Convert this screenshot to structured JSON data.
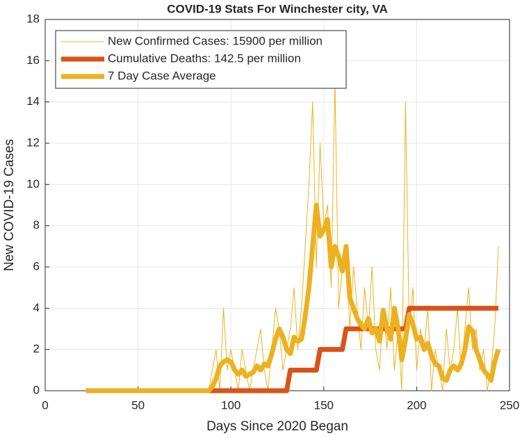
{
  "chart_data": {
    "type": "line",
    "title": "COVID-19 Stats For Winchester city, VA",
    "xlabel": "Days Since 2020 Began",
    "ylabel": "New COVID-19 Cases",
    "xlim": [
      0,
      250
    ],
    "xticks": [
      0,
      50,
      100,
      150,
      200,
      250
    ],
    "ylim": [
      0,
      18
    ],
    "yticks": [
      0,
      2,
      4,
      6,
      8,
      10,
      12,
      14,
      16,
      18
    ],
    "grid": true,
    "legend": "upper left",
    "x": [
      22,
      24,
      26,
      28,
      30,
      32,
      34,
      36,
      38,
      40,
      42,
      44,
      46,
      48,
      50,
      52,
      54,
      56,
      58,
      60,
      62,
      64,
      66,
      68,
      70,
      72,
      74,
      76,
      78,
      80,
      82,
      84,
      86,
      88,
      90,
      92,
      94,
      96,
      98,
      100,
      102,
      104,
      106,
      108,
      110,
      112,
      114,
      116,
      118,
      120,
      122,
      124,
      126,
      128,
      130,
      132,
      134,
      136,
      138,
      140,
      142,
      144,
      146,
      148,
      150,
      152,
      154,
      156,
      158,
      160,
      162,
      164,
      166,
      168,
      170,
      172,
      174,
      176,
      178,
      180,
      182,
      184,
      186,
      188,
      190,
      192,
      194,
      196,
      198,
      200,
      202,
      204,
      206,
      208,
      210,
      212,
      214,
      216,
      218,
      220,
      222,
      224,
      226,
      228,
      230,
      232,
      234,
      236,
      238,
      240,
      242,
      244
    ],
    "series": [
      {
        "name": "New Confirmed Cases: 15900 per million",
        "color": "#EDB120",
        "width": 1,
        "values": [
          0,
          0,
          0,
          0,
          0,
          0,
          0,
          0,
          0,
          0,
          0,
          0,
          0,
          0,
          0,
          0,
          0,
          0,
          0,
          0,
          0,
          0,
          0,
          0,
          0,
          0,
          0,
          0,
          0,
          0,
          0,
          0,
          0,
          0,
          1,
          2,
          0,
          4,
          1,
          2,
          1,
          0,
          2,
          1,
          0,
          1,
          2,
          3,
          1,
          0,
          2,
          4,
          3,
          1,
          2,
          3,
          5,
          2,
          4,
          7,
          10,
          14,
          6,
          12,
          8,
          9,
          5,
          15,
          4,
          6,
          7,
          3,
          6,
          4,
          2,
          5,
          3,
          6,
          2,
          1,
          4,
          2,
          5,
          1,
          3,
          0,
          14,
          3,
          5,
          1,
          3,
          2,
          4,
          0,
          2,
          1,
          0,
          3,
          1,
          2,
          4,
          1,
          3,
          5,
          2,
          3,
          1,
          2,
          0,
          1,
          3,
          7
        ]
      },
      {
        "name": "Cumulative Deaths: 142.5 per million",
        "color": "#D95319",
        "width": 7,
        "values": [
          0,
          0,
          0,
          0,
          0,
          0,
          0,
          0,
          0,
          0,
          0,
          0,
          0,
          0,
          0,
          0,
          0,
          0,
          0,
          0,
          0,
          0,
          0,
          0,
          0,
          0,
          0,
          0,
          0,
          0,
          0,
          0,
          0,
          0,
          0,
          0,
          0,
          0,
          0,
          0,
          0,
          0,
          0,
          0,
          0,
          0,
          0,
          0,
          0,
          0,
          0,
          0,
          0,
          0,
          0,
          1,
          1,
          1,
          1,
          1,
          1,
          1,
          1,
          2,
          2,
          2,
          2,
          2,
          2,
          2,
          3,
          3,
          3,
          3,
          3,
          3,
          3,
          3,
          3,
          3,
          3,
          3,
          3,
          3,
          3,
          3,
          3,
          4,
          4,
          4,
          4,
          4,
          4,
          4,
          4,
          4,
          4,
          4,
          4,
          4,
          4,
          4,
          4,
          4,
          4,
          4,
          4,
          4,
          4,
          4,
          4,
          4
        ]
      },
      {
        "name": "7 Day Case Average",
        "color": "#EDB120",
        "width": 7,
        "values": [
          0,
          0,
          0,
          0,
          0,
          0,
          0,
          0,
          0,
          0,
          0,
          0,
          0,
          0,
          0,
          0,
          0,
          0,
          0,
          0,
          0,
          0,
          0,
          0,
          0,
          0,
          0,
          0,
          0,
          0,
          0,
          0,
          0,
          0,
          0.2,
          0.6,
          1.2,
          1.4,
          1.5,
          1.4,
          1.0,
          0.8,
          1.0,
          0.7,
          0.8,
          0.9,
          1.2,
          1.0,
          1.3,
          1.2,
          1.8,
          2.5,
          3.0,
          2.6,
          2.0,
          1.8,
          2.6,
          2.4,
          2.5,
          3.6,
          5.0,
          7.0,
          9.0,
          7.5,
          7.8,
          8.3,
          6.0,
          7.0,
          6.5,
          5.8,
          7.0,
          4.5,
          4.0,
          3.5,
          3.2,
          3.0,
          3.5,
          2.8,
          3.0,
          2.4,
          3.9,
          3.0,
          2.5,
          4.0,
          3.0,
          1.5,
          2.5,
          3.7,
          3.2,
          2.5,
          2.6,
          2.0,
          2.3,
          1.7,
          1.3,
          1.2,
          0.6,
          0.5,
          1.0,
          1.2,
          1.0,
          1.3,
          2.0,
          3.1,
          2.9,
          2.0,
          1.5,
          1.0,
          0.8,
          0.5,
          1.4,
          2.0
        ]
      }
    ]
  }
}
